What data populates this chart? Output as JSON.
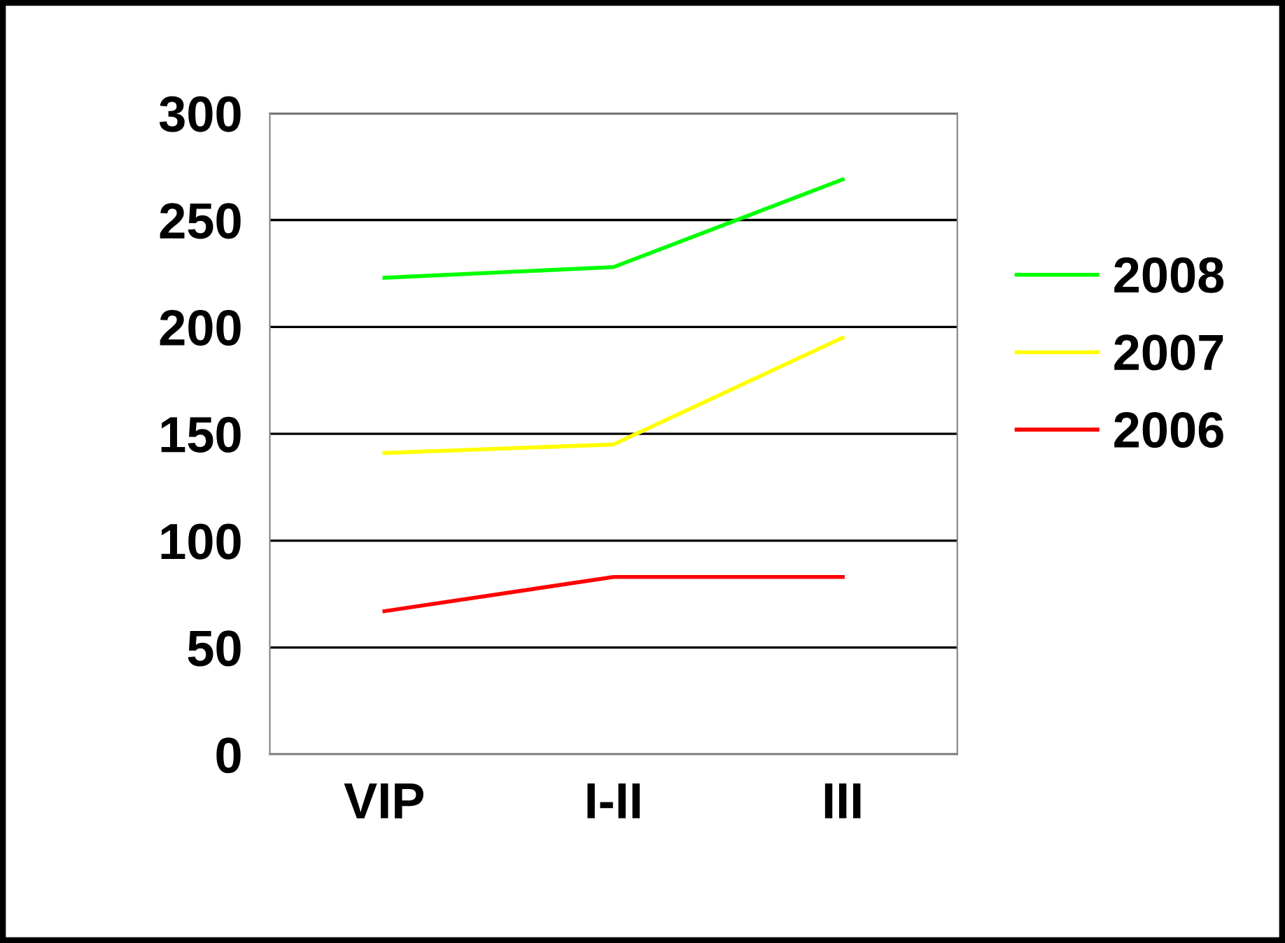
{
  "chart_data": {
    "type": "line",
    "categories": [
      "VIP",
      "I-II",
      "III"
    ],
    "series": [
      {
        "name": "2008",
        "color": "#00ff00",
        "values": [
          223,
          228,
          269
        ]
      },
      {
        "name": "2007",
        "color": "#ffff00",
        "values": [
          141,
          145,
          195
        ]
      },
      {
        "name": "2006",
        "color": "#ff0000",
        "values": [
          67,
          83,
          83
        ]
      }
    ],
    "ylim": [
      0,
      300
    ],
    "yticks": [
      0,
      50,
      100,
      150,
      200,
      250,
      300
    ],
    "grid": "y",
    "legend": "right",
    "marker": "none",
    "line_style": "solid"
  }
}
